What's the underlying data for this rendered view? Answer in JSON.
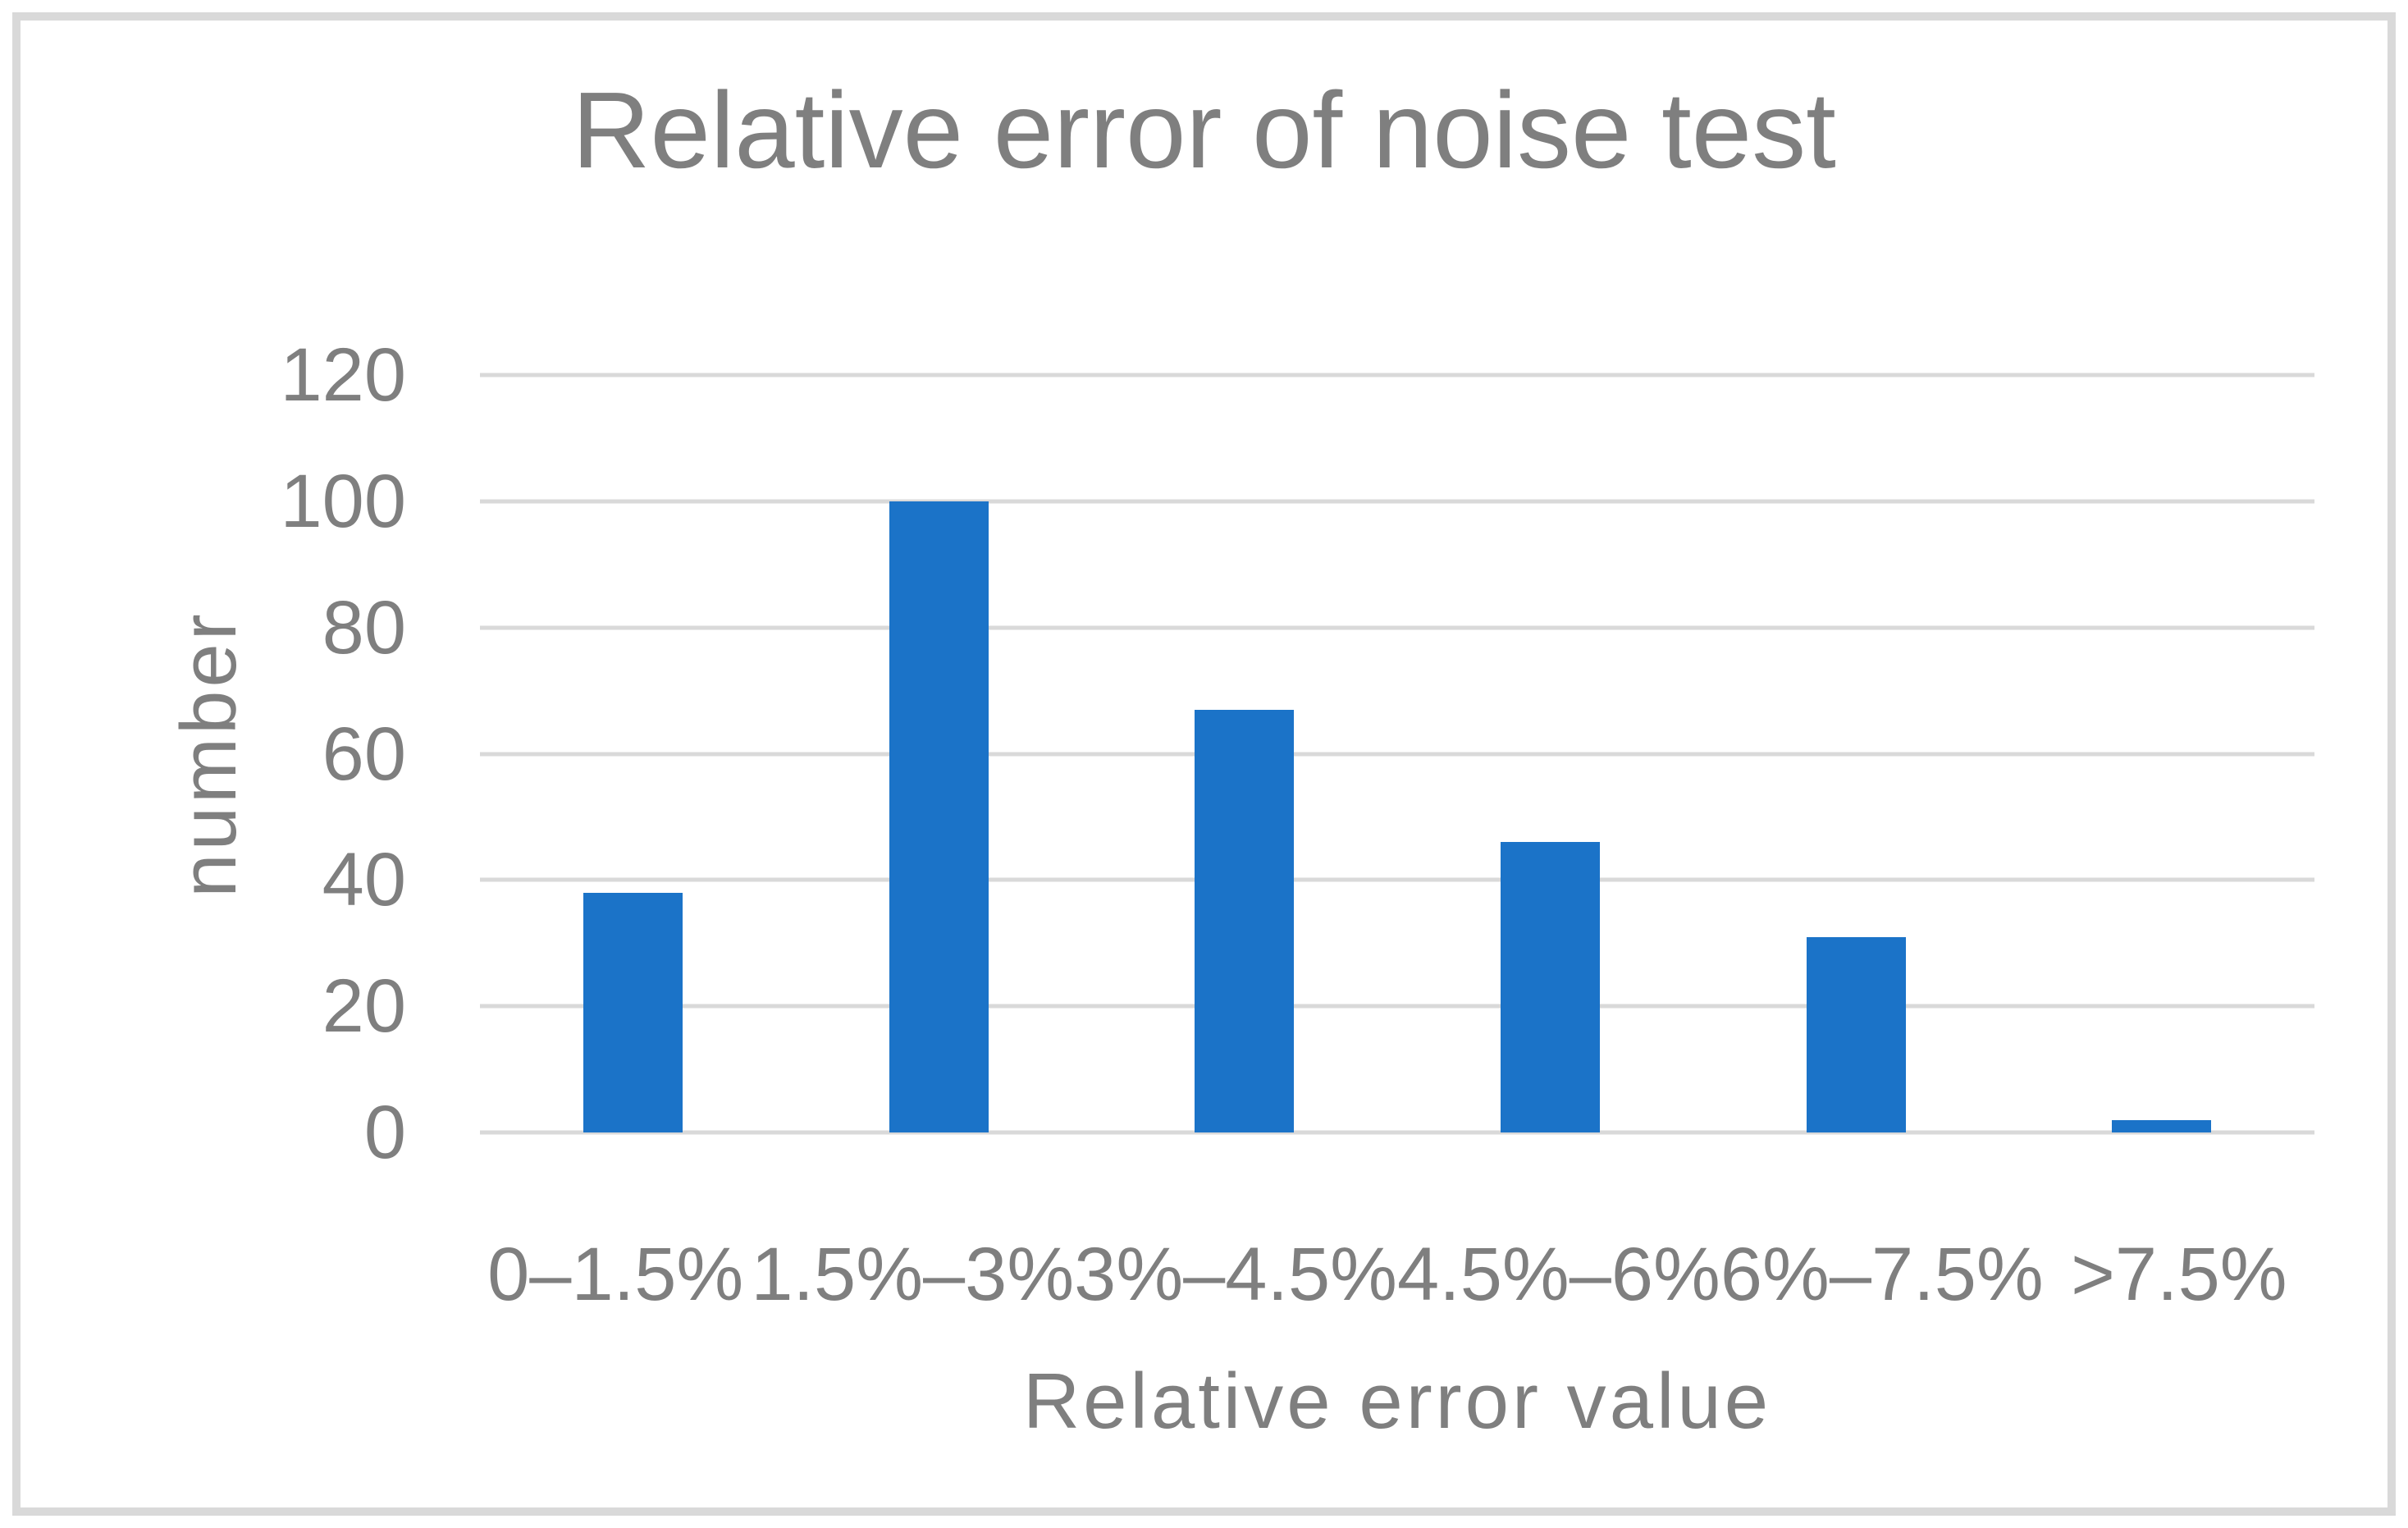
{
  "chart_data": {
    "type": "bar",
    "title": "Relative error of noise test",
    "xlabel": "Relative error value",
    "ylabel": "number",
    "categories": [
      "0–1.5%",
      "1.5%–3%",
      "3%–4.5%",
      "4.5%–6%",
      "6%–7.5%",
      ">7.5%"
    ],
    "values": [
      38,
      100,
      67,
      46,
      31,
      2
    ],
    "ylim": [
      0,
      120
    ],
    "yticks": [
      0,
      20,
      40,
      60,
      80,
      100,
      120
    ],
    "grid": "horizontal",
    "legend": "none",
    "bar_color": "#1b73c8",
    "text_color": "#7f7f7f",
    "gridline_color": "#d9d9d9",
    "frame_color": "#d9d9d9"
  }
}
